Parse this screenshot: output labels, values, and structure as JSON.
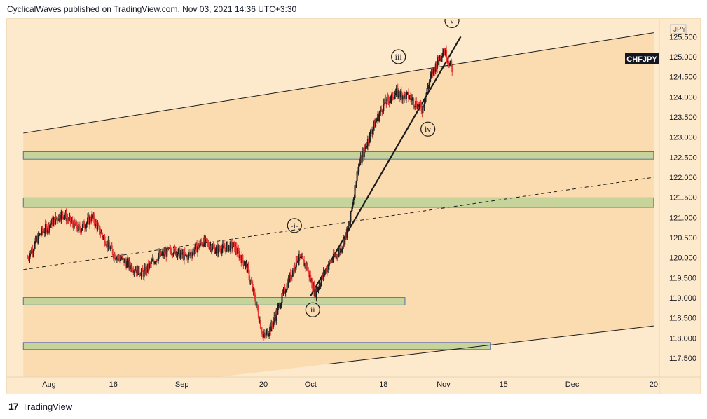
{
  "header": {
    "text": "CyclicalWaves published on TradingView.com, Nov 03, 2021 14:36 UTC+3:30"
  },
  "footer": {
    "logo": "17",
    "brand": "TradingView"
  },
  "colors": {
    "background": "#fde9cc",
    "channel_fill": "#fbdbb0",
    "zone_fill": "#c6d49c",
    "zone_border": "#5a6fa8",
    "candle_up": "#1e1e1e",
    "candle_down": "#e53935"
  },
  "chart_data": {
    "type": "candlestick",
    "symbol": "CHFJPY",
    "currency": "JPY",
    "y_ticks": [
      125.5,
      125.0,
      124.5,
      124.0,
      123.5,
      123.0,
      122.5,
      122.0,
      121.5,
      121.0,
      120.5,
      120.0,
      119.5,
      119.0,
      118.5,
      118.0,
      117.5
    ],
    "y_tick_labels": [
      "125.500",
      "125.000",
      "124.500",
      "124.000",
      "123.500",
      "123.000",
      "122.500",
      "122.000",
      "121.500",
      "121.000",
      "120.500",
      "120.000",
      "119.500",
      "119.000",
      "118.500",
      "118.000",
      "117.500"
    ],
    "x_tick_labels": [
      "Aug",
      "16",
      "Sep",
      "20",
      "Oct",
      "18",
      "Nov",
      "15",
      "Dec",
      "20"
    ],
    "x_tick_dates": [
      "2021-08-01",
      "2021-08-16",
      "2021-09-01",
      "2021-09-20",
      "2021-10-01",
      "2021-10-18",
      "2021-11-01",
      "2021-11-15",
      "2021-12-01",
      "2021-12-20"
    ],
    "last_price_label": "CHFJPY",
    "price_path": [
      [
        "2021-07-27",
        120.0
      ],
      [
        "2021-07-30",
        120.6
      ],
      [
        "2021-08-04",
        121.1
      ],
      [
        "2021-08-08",
        120.7
      ],
      [
        "2021-08-11",
        121.0
      ],
      [
        "2021-08-16",
        120.1
      ],
      [
        "2021-08-20",
        119.8
      ],
      [
        "2021-08-23",
        119.6
      ],
      [
        "2021-08-26",
        120.0
      ],
      [
        "2021-08-30",
        120.2
      ],
      [
        "2021-09-02",
        120.0
      ],
      [
        "2021-09-06",
        120.4
      ],
      [
        "2021-09-09",
        120.2
      ],
      [
        "2021-09-13",
        120.3
      ],
      [
        "2021-09-16",
        119.8
      ],
      [
        "2021-09-18",
        119.0
      ],
      [
        "2021-09-20",
        118.0
      ],
      [
        "2021-09-22",
        118.3
      ],
      [
        "2021-09-25",
        119.2
      ],
      [
        "2021-09-28",
        120.0
      ],
      [
        "2021-09-30",
        119.8
      ],
      [
        "2021-10-02",
        119.1
      ],
      [
        "2021-10-05",
        119.8
      ],
      [
        "2021-10-08",
        120.2
      ],
      [
        "2021-10-10",
        120.8
      ],
      [
        "2021-10-12",
        122.2
      ],
      [
        "2021-10-15",
        123.1
      ],
      [
        "2021-10-18",
        123.8
      ],
      [
        "2021-10-21",
        124.1
      ],
      [
        "2021-10-24",
        124.0
      ],
      [
        "2021-10-27",
        123.7
      ],
      [
        "2021-10-29",
        124.5
      ],
      [
        "2021-11-01",
        125.2
      ],
      [
        "2021-11-03",
        124.7
      ]
    ],
    "wave_labels": [
      {
        "label": "-i-",
        "date": "2021-10-01",
        "price": 120.8
      },
      {
        "label": "ii",
        "date": "2021-10-01",
        "price": 118.7
      },
      {
        "label": "iii",
        "date": "2021-10-21",
        "price": 125.0
      },
      {
        "label": "iv",
        "date": "2021-10-29",
        "price": 123.2
      },
      {
        "label": "v",
        "date": "2021-11-01",
        "price": 125.9
      }
    ],
    "support_zones": [
      {
        "from": "2021-07-26",
        "to": "2021-12-20",
        "low": 122.45,
        "high": 122.55
      },
      {
        "from": "2021-07-26",
        "to": "2021-12-20",
        "low": 121.25,
        "high": 121.4
      },
      {
        "from": "2021-07-26",
        "to": "2021-10-23",
        "low": 118.82,
        "high": 118.92
      },
      {
        "from": "2021-07-26",
        "to": "2021-11-12",
        "low": 117.72,
        "high": 117.8
      }
    ],
    "trendlines": [
      {
        "style": "solid",
        "from": [
          "2021-07-26",
          123.1
        ],
        "to": [
          "2021-12-20",
          125.6
        ]
      },
      {
        "style": "solid",
        "from": [
          "2021-10-05",
          117.35
        ],
        "to": [
          "2021-12-20",
          118.3
        ]
      },
      {
        "style": "dashed",
        "from": [
          "2021-07-26",
          119.7
        ],
        "to": [
          "2021-12-20",
          122.0
        ]
      },
      {
        "style": "solid-bold",
        "from": [
          "2021-10-01",
          119.05
        ],
        "to": [
          "2021-11-05",
          125.5
        ]
      }
    ]
  }
}
